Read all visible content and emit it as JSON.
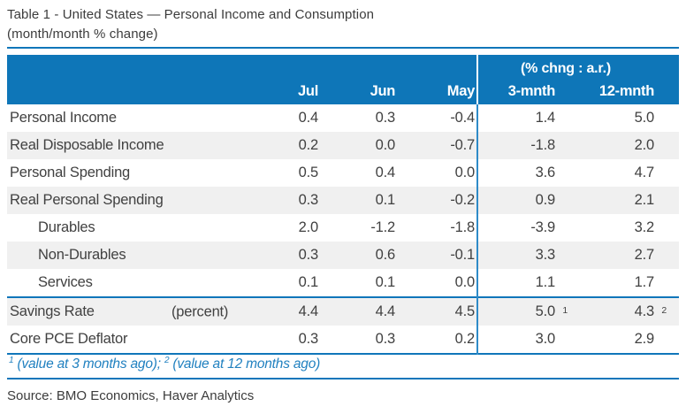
{
  "page": {
    "title_line1": "Table 1 - United States — Personal Income and Consumption",
    "title_line2": "(month/month % change)",
    "source": "Source: BMO Economics, Haver Analytics"
  },
  "table": {
    "group_label": "(% chng : a.r.)",
    "columns": [
      "Jul",
      "Jun",
      "May",
      "3-mnth",
      "12-mnth"
    ],
    "rows": [
      {
        "label": "Personal Income",
        "values": [
          "0.4",
          "0.3",
          "-0.4",
          "1.4",
          "5.0"
        ]
      },
      {
        "label": "Real Disposable Income",
        "values": [
          "0.2",
          "0.0",
          "-0.7",
          "-1.8",
          "2.0"
        ]
      },
      {
        "label": "Personal Spending",
        "values": [
          "0.5",
          "0.4",
          "0.0",
          "3.6",
          "4.7"
        ]
      },
      {
        "label": "Real Personal Spending",
        "values": [
          "0.3",
          "0.1",
          "-0.2",
          "0.9",
          "2.1"
        ]
      },
      {
        "label": "Durables",
        "values": [
          "2.0",
          "-1.2",
          "-1.8",
          "-3.9",
          "3.2"
        ]
      },
      {
        "label": "Non-Durables",
        "values": [
          "0.3",
          "0.6",
          "-0.1",
          "3.3",
          "2.7"
        ]
      },
      {
        "label": "Services",
        "values": [
          "0.1",
          "0.1",
          "0.0",
          "1.1",
          "1.7"
        ]
      },
      {
        "label": "Savings Rate",
        "unit_note": "(percent)",
        "values": [
          "4.4",
          "4.4",
          "4.5",
          "5.0",
          "4.3"
        ],
        "sup_3mnth": "1",
        "sup_12mnth": "2"
      },
      {
        "label": "Core PCE Deflator",
        "values": [
          "0.3",
          "0.3",
          "0.2",
          "3.0",
          "2.9"
        ]
      }
    ]
  },
  "footnote": {
    "sup1": "1",
    "part1": " (value at 3 months ago); ",
    "sup2": "2",
    "part2": " (value at 12 months ago)"
  },
  "colors": {
    "accent_blue": "#0E76B8",
    "stripe_gray": "#F0F0F0",
    "text_dark": "#3C3C3C"
  },
  "chart_data": {
    "type": "table",
    "title": "Table 1 - United States — Personal Income and Consumption",
    "subtitle": "(month/month % change)",
    "columns": [
      "Jul",
      "Jun",
      "May",
      "3-mnth (% chng : a.r.)",
      "12-mnth (% chng : a.r.)"
    ],
    "rows": [
      {
        "label": "Personal Income",
        "jul": 0.4,
        "jun": 0.3,
        "may": -0.4,
        "m3": 1.4,
        "m12": 5.0
      },
      {
        "label": "Real Disposable Income",
        "jul": 0.2,
        "jun": 0.0,
        "may": -0.7,
        "m3": -1.8,
        "m12": 2.0
      },
      {
        "label": "Personal Spending",
        "jul": 0.5,
        "jun": 0.4,
        "may": 0.0,
        "m3": 3.6,
        "m12": 4.7
      },
      {
        "label": "Real Personal Spending",
        "jul": 0.3,
        "jun": 0.1,
        "may": -0.2,
        "m3": 0.9,
        "m12": 2.1
      },
      {
        "label": "Durables",
        "jul": 2.0,
        "jun": -1.2,
        "may": -1.8,
        "m3": -3.9,
        "m12": 3.2
      },
      {
        "label": "Non-Durables",
        "jul": 0.3,
        "jun": 0.6,
        "may": -0.1,
        "m3": 3.3,
        "m12": 2.7
      },
      {
        "label": "Services",
        "jul": 0.1,
        "jun": 0.1,
        "may": 0.0,
        "m3": 1.1,
        "m12": 1.7
      },
      {
        "label": "Savings Rate (percent)",
        "jul": 4.4,
        "jun": 4.4,
        "may": 4.5,
        "m3": 5.0,
        "m12": 4.3
      },
      {
        "label": "Core PCE Deflator",
        "jul": 0.3,
        "jun": 0.3,
        "may": 0.2,
        "m3": 3.0,
        "m12": 2.9
      }
    ],
    "footnotes": [
      "1 (value at 3 months ago)",
      "2 (value at 12 months ago)"
    ],
    "source": "Source: BMO Economics, Haver Analytics"
  }
}
